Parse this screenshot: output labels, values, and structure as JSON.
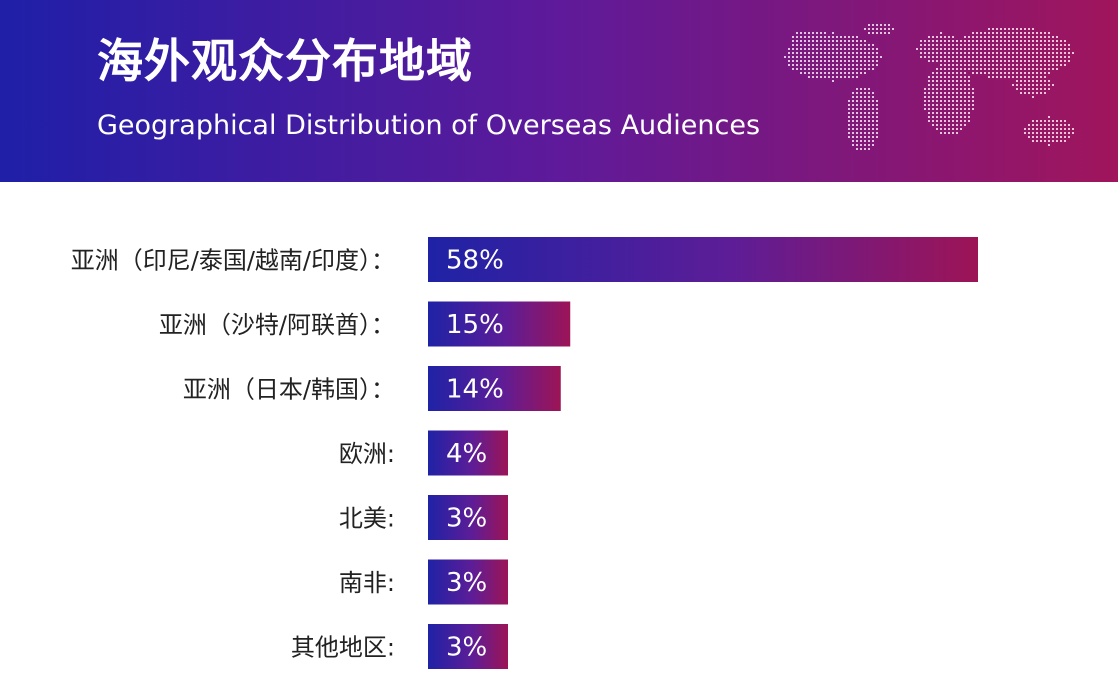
{
  "header": {
    "title": "海外观众分布地域",
    "subtitle": "Geographical Distribution of Overseas Audiences"
  },
  "colors": {
    "banner_start": "#1f1fa8",
    "banner_mid": "#5e1a9a",
    "banner_end": "#a0155c",
    "bar_start": "#1f22a6",
    "bar_mid": "#5d1d97",
    "bar_end": "#9d1456",
    "text": "#222222"
  },
  "chart_data": {
    "type": "bar",
    "orientation": "horizontal",
    "title": "海外观众分布地域",
    "subtitle": "Geographical Distribution of Overseas Audiences",
    "categories": [
      "亚洲（印尼/泰国/越南/印度）：",
      "亚洲（沙特/阿联酋）：",
      "亚洲（日本/韩国）：",
      "欧洲:",
      "北美:",
      "南非:",
      "其他地区:"
    ],
    "values": [
      58,
      15,
      14,
      4,
      3,
      3,
      3
    ],
    "value_labels": [
      "58%",
      "15%",
      "14%",
      "4%",
      "3%",
      "3%",
      "3%"
    ],
    "unit": "%",
    "xlabel": "",
    "ylabel": "",
    "xlim": [
      0,
      58
    ],
    "grid": false,
    "legend": "none"
  }
}
